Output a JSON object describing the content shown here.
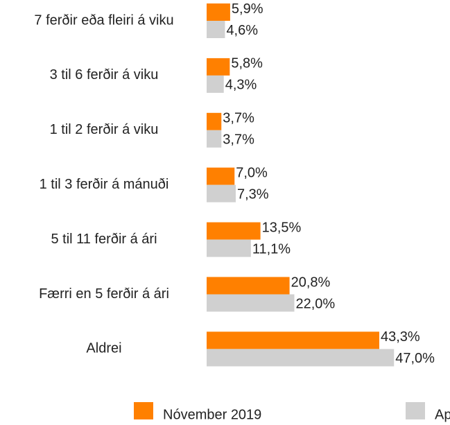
{
  "chart_data": {
    "type": "bar",
    "orientation": "horizontal",
    "categories": [
      "7 ferðir eða fleiri á viku",
      "3 til 6 ferðir á viku",
      "1 til 2 ferðir á viku",
      "1 til 3 ferðir á mánuði",
      "5 til 11 ferðir á ári",
      "Færri en 5 ferðir á ári",
      "Aldrei"
    ],
    "series": [
      {
        "name": "Nóvember 2019",
        "color": "#ff8000",
        "values": [
          5.9,
          5.8,
          3.7,
          7.0,
          13.5,
          20.8,
          43.3
        ],
        "value_labels": [
          "5,9%",
          "5,8%",
          "3,7%",
          "7,0%",
          "13,5%",
          "20,8%",
          "43,3%"
        ]
      },
      {
        "name": "Apr",
        "color": "#d0d0d0",
        "values": [
          4.6,
          4.3,
          3.7,
          7.3,
          11.1,
          22.0,
          47.0
        ],
        "value_labels": [
          "4,6%",
          "4,3%",
          "3,7%",
          "7,3%",
          "11,1%",
          "22,0%",
          "47,0%"
        ]
      }
    ]
  }
}
